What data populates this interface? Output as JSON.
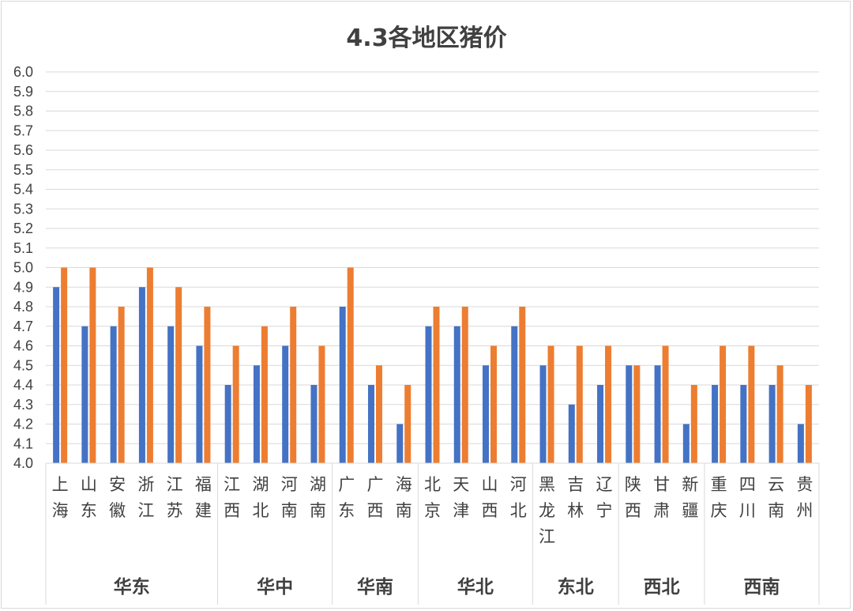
{
  "chart_data": {
    "type": "bar",
    "title": "4.3各地区猪价",
    "xlabel": "",
    "ylabel": "",
    "ylim": [
      4.0,
      6.0
    ],
    "ytick_step": 0.1,
    "yticks": [
      "4.0",
      "4.1",
      "4.2",
      "4.3",
      "4.4",
      "4.5",
      "4.6",
      "4.7",
      "4.8",
      "4.9",
      "5.0",
      "5.1",
      "5.2",
      "5.3",
      "5.4",
      "5.5",
      "5.6",
      "5.7",
      "5.8",
      "5.9",
      "6.0"
    ],
    "grid": true,
    "legend": "none",
    "categories": [
      "上海",
      "山东",
      "安徽",
      "浙江",
      "江苏",
      "福建",
      "江西",
      "湖北",
      "河南",
      "湖南",
      "广东",
      "广西",
      "海南",
      "北京",
      "天津",
      "山西",
      "河北",
      "黑龙江",
      "吉林",
      "辽宁",
      "陕西",
      "甘肃",
      "新疆",
      "重庆",
      "四川",
      "云南",
      "贵州"
    ],
    "groups": [
      {
        "label": "华东",
        "count": 6
      },
      {
        "label": "华中",
        "count": 4
      },
      {
        "label": "华南",
        "count": 3
      },
      {
        "label": "华北",
        "count": 4
      },
      {
        "label": "东北",
        "count": 3
      },
      {
        "label": "西北",
        "count": 3
      },
      {
        "label": "西南",
        "count": 4
      }
    ],
    "series": [
      {
        "color": "#4472c4",
        "values": [
          4.9,
          4.7,
          4.7,
          4.9,
          4.7,
          4.6,
          4.4,
          4.5,
          4.6,
          4.4,
          4.8,
          4.4,
          4.2,
          4.7,
          4.7,
          4.5,
          4.7,
          4.5,
          4.3,
          4.4,
          4.5,
          4.5,
          4.2,
          4.4,
          4.4,
          4.4,
          4.2
        ]
      },
      {
        "color": "#ed7d31",
        "values": [
          5.0,
          5.0,
          4.8,
          5.0,
          4.9,
          4.8,
          4.6,
          4.7,
          4.8,
          4.6,
          5.0,
          4.5,
          4.4,
          4.8,
          4.8,
          4.6,
          4.8,
          4.6,
          4.6,
          4.6,
          4.5,
          4.6,
          4.4,
          4.6,
          4.6,
          4.5,
          4.4
        ]
      }
    ]
  }
}
